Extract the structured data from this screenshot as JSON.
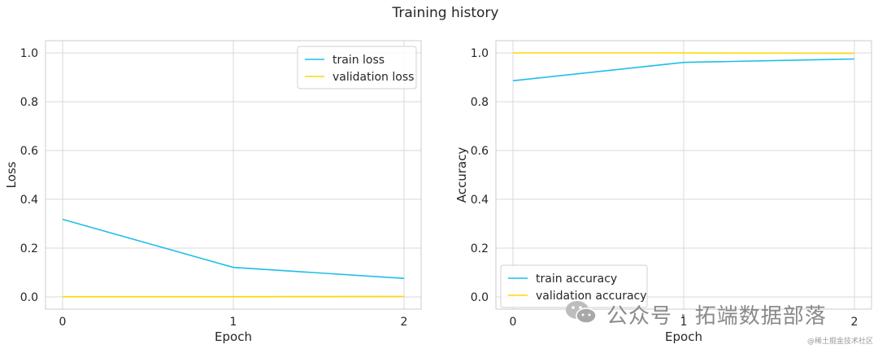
{
  "figure_title": "Training history",
  "chart_data": [
    {
      "type": "line",
      "title": "",
      "xlabel": "Epoch",
      "ylabel": "Loss",
      "x": [
        0,
        1,
        2
      ],
      "xlim": [
        -0.1,
        2.1
      ],
      "ylim": [
        -0.05,
        1.05
      ],
      "xticks": [
        "0",
        "1",
        "2"
      ],
      "yticks": [
        "0.0",
        "0.2",
        "0.4",
        "0.6",
        "0.8",
        "1.0"
      ],
      "grid": true,
      "legend_position": "top-right",
      "series": [
        {
          "name": "train loss",
          "color": "#1cbfe8",
          "values": [
            0.318,
            0.121,
            0.076
          ]
        },
        {
          "name": "validation loss",
          "color": "#ffd700",
          "values": [
            0.001,
            0.001,
            0.002
          ]
        }
      ]
    },
    {
      "type": "line",
      "title": "",
      "xlabel": "Epoch",
      "ylabel": "Accuracy",
      "x": [
        0,
        1,
        2
      ],
      "xlim": [
        -0.1,
        2.1
      ],
      "ylim": [
        -0.05,
        1.05
      ],
      "xticks": [
        "0",
        "1",
        "2"
      ],
      "yticks": [
        "0.0",
        "0.2",
        "0.4",
        "0.6",
        "0.8",
        "1.0"
      ],
      "grid": true,
      "legend_position": "bottom-left",
      "series": [
        {
          "name": "train accuracy",
          "color": "#1cbfe8",
          "values": [
            0.886,
            0.961,
            0.975
          ]
        },
        {
          "name": "validation accuracy",
          "color": "#ffd700",
          "values": [
            1.0,
            1.0,
            0.998
          ]
        }
      ]
    }
  ],
  "watermark": {
    "text": "公众号 · 拓端数据部落",
    "small_text": "@稀土掘金技术社区",
    "icon": "wechat-icon"
  }
}
